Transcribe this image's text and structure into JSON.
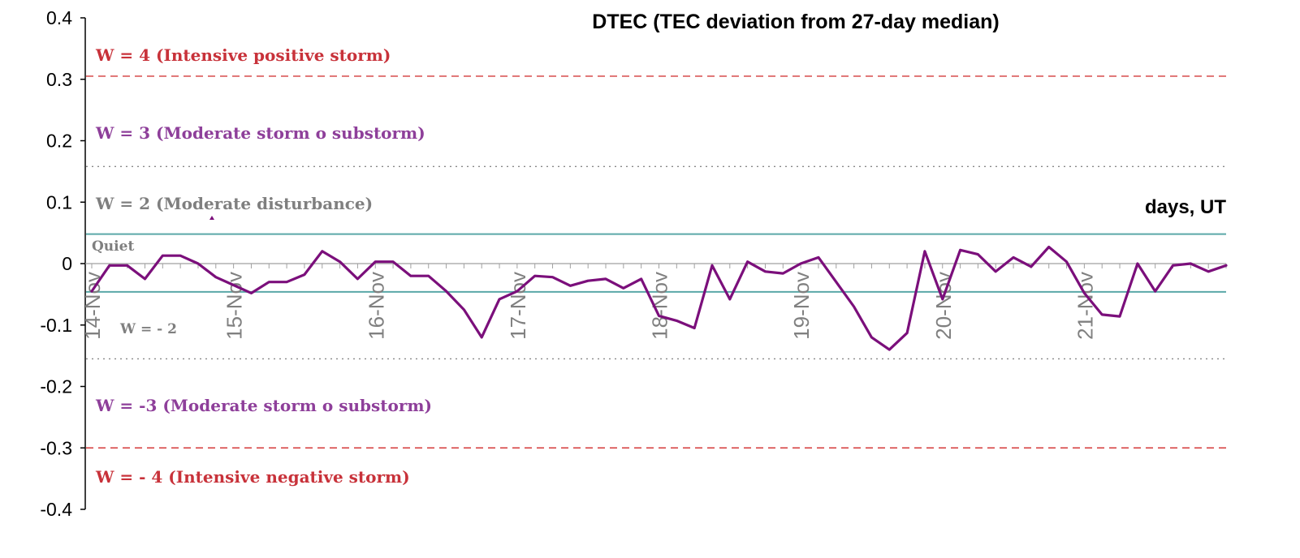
{
  "chart_data": {
    "type": "line",
    "title": "DTEC (TEC deviation from 27-day median)",
    "xlabel": "days, UT",
    "ylabel": "",
    "ylim": [
      -0.4,
      0.4
    ],
    "yticks": [
      0.4,
      0.3,
      0.2,
      0.1,
      0,
      -0.1,
      -0.2,
      -0.3,
      -0.4
    ],
    "ytick_labels": [
      "0.4",
      "0.3",
      "0.2",
      "0.1",
      "0",
      "-0.1",
      "-0.2",
      "-0.3",
      "-0.4"
    ],
    "xlim": [
      0,
      8
    ],
    "xticks": [
      {
        "x": 0,
        "label": "14-Nov"
      },
      {
        "x": 1,
        "label": "15-Nov"
      },
      {
        "x": 2,
        "label": "16-Nov"
      },
      {
        "x": 3,
        "label": "17-Nov"
      },
      {
        "x": 4,
        "label": "18-Nov"
      },
      {
        "x": 5,
        "label": "19-Nov"
      },
      {
        "x": 6,
        "label": "20-Nov"
      },
      {
        "x": 7,
        "label": "21-Nov"
      }
    ],
    "grid": false,
    "series": [
      {
        "color": "#7b0f7b",
        "points": [
          [
            0.0,
            -0.045
          ],
          [
            0.125,
            -0.003
          ],
          [
            0.25,
            -0.003
          ],
          [
            0.375,
            -0.025
          ],
          [
            0.5,
            0.013
          ],
          [
            0.625,
            0.013
          ],
          [
            0.75,
            0.0
          ],
          [
            0.875,
            -0.022
          ],
          [
            1.0,
            -0.035
          ],
          [
            1.125,
            -0.048
          ],
          [
            1.25,
            -0.03
          ],
          [
            1.375,
            -0.03
          ],
          [
            1.5,
            -0.018
          ],
          [
            1.625,
            0.02
          ],
          [
            1.75,
            0.003
          ],
          [
            1.875,
            -0.025
          ],
          [
            2.0,
            0.003
          ],
          [
            2.125,
            0.003
          ],
          [
            2.25,
            -0.02
          ],
          [
            2.375,
            -0.02
          ],
          [
            2.5,
            -0.045
          ],
          [
            2.625,
            -0.075
          ],
          [
            2.75,
            -0.12
          ],
          [
            2.875,
            -0.058
          ],
          [
            3.0,
            -0.045
          ],
          [
            3.125,
            -0.02
          ],
          [
            3.25,
            -0.022
          ],
          [
            3.375,
            -0.036
          ],
          [
            3.5,
            -0.028
          ],
          [
            3.625,
            -0.025
          ],
          [
            3.75,
            -0.04
          ],
          [
            3.875,
            -0.025
          ],
          [
            4.0,
            -0.085
          ],
          [
            4.125,
            -0.093
          ],
          [
            4.25,
            -0.105
          ],
          [
            4.375,
            -0.003
          ],
          [
            4.5,
            -0.058
          ],
          [
            4.625,
            0.003
          ],
          [
            4.75,
            -0.013
          ],
          [
            4.875,
            -0.016
          ],
          [
            5.0,
            0.0
          ],
          [
            5.125,
            0.01
          ],
          [
            5.25,
            -0.03
          ],
          [
            5.375,
            -0.07
          ],
          [
            5.5,
            -0.12
          ],
          [
            5.625,
            -0.14
          ],
          [
            5.75,
            -0.113
          ],
          [
            5.875,
            0.02
          ],
          [
            6.0,
            -0.058
          ],
          [
            6.125,
            0.022
          ],
          [
            6.25,
            0.015
          ],
          [
            6.375,
            -0.013
          ],
          [
            6.5,
            0.01
          ],
          [
            6.625,
            -0.005
          ],
          [
            6.75,
            0.027
          ],
          [
            6.875,
            0.003
          ],
          [
            7.0,
            -0.048
          ],
          [
            7.125,
            -0.083
          ],
          [
            7.25,
            -0.086
          ],
          [
            7.375,
            0.0
          ],
          [
            7.5,
            -0.045
          ],
          [
            7.625,
            -0.003
          ],
          [
            7.75,
            0.0
          ],
          [
            7.875,
            -0.013
          ],
          [
            8.0,
            -0.003
          ]
        ]
      }
    ],
    "reference_lines": [
      {
        "y": 0.305,
        "style": "dashed",
        "color": "#d43a3a"
      },
      {
        "y": 0.158,
        "style": "dotted",
        "color": "#888888"
      },
      {
        "y": 0.048,
        "style": "solid",
        "color": "#5aa8a8"
      },
      {
        "y": -0.046,
        "style": "solid",
        "color": "#5aa8a8"
      },
      {
        "y": -0.155,
        "style": "dotted",
        "color": "#888888"
      },
      {
        "y": -0.3,
        "style": "dashed",
        "color": "#d43a3a"
      }
    ],
    "annotations": [
      {
        "key": "w4",
        "text": "W = 4 (Intensive positive storm)",
        "color": "#c8323a"
      },
      {
        "key": "w3",
        "text": "W = 3 (Moderate storm o substorm)",
        "color": "#8e3f9a"
      },
      {
        "key": "w2",
        "text": "W = 2 (Moderate disturbance)",
        "color": "#7f7f7f"
      },
      {
        "key": "quiet",
        "text": "Quiet",
        "color": "#7f7f7f"
      },
      {
        "key": "wm2",
        "text": "W = - 2",
        "color": "#7f7f7f"
      },
      {
        "key": "wm3",
        "text": "W = -3 (Moderate storm o substorm)",
        "color": "#8e3f9a"
      },
      {
        "key": "wm4",
        "text": "W = - 4 (Intensive negative storm)",
        "color": "#c8323a"
      }
    ]
  }
}
